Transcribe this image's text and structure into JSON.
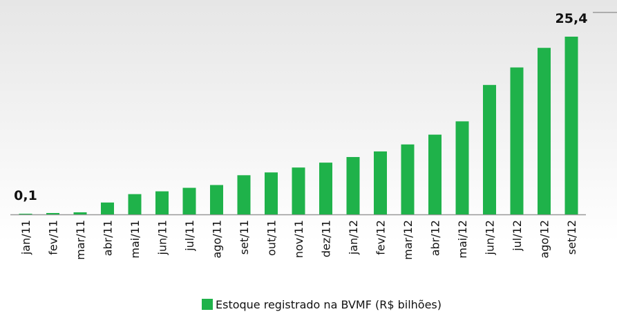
{
  "chart_data": {
    "type": "bar",
    "categories": [
      "jan/11",
      "fev/11",
      "mar/11",
      "abr/11",
      "mai/11",
      "jun/11",
      "jul/11",
      "ago/11",
      "set/11",
      "out/11",
      "nov/11",
      "dez/11",
      "jan/12",
      "fev/12",
      "mar/12",
      "abr/12",
      "mai/12",
      "jun/12",
      "jul/12",
      "ago/12",
      "set/12"
    ],
    "values": [
      0.1,
      0.2,
      0.3,
      1.7,
      2.9,
      3.3,
      3.8,
      4.2,
      5.6,
      6.0,
      6.7,
      7.4,
      8.2,
      9.0,
      10.0,
      11.4,
      13.3,
      18.5,
      21.0,
      23.8,
      25.4
    ],
    "value_labels": [
      "0,1",
      null,
      null,
      null,
      null,
      null,
      null,
      null,
      null,
      null,
      null,
      null,
      null,
      null,
      null,
      null,
      null,
      null,
      null,
      null,
      "25,4"
    ],
    "color": "#1fb24a",
    "legend": "Estoque registrado na BVMF (R$ bilhões)"
  }
}
